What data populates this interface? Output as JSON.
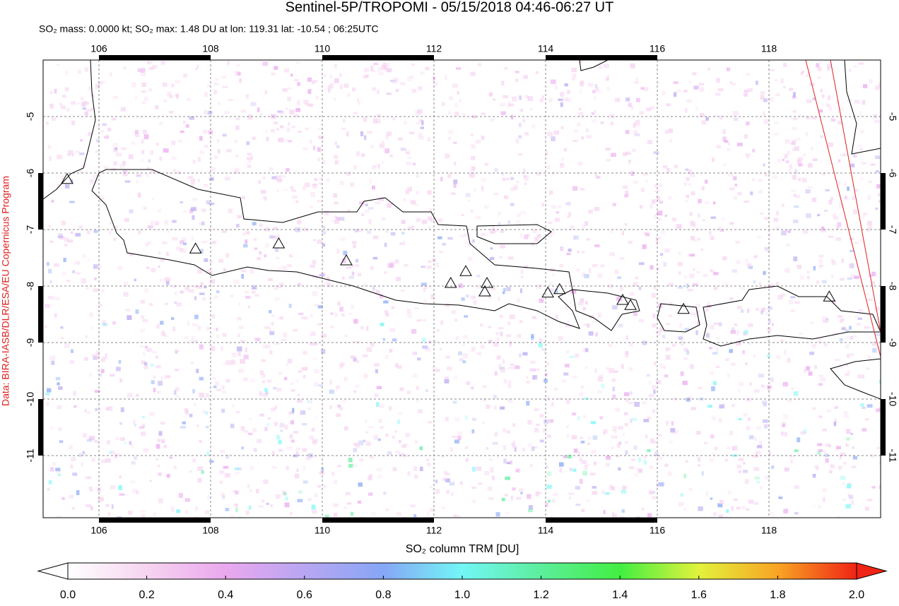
{
  "chart_data": {
    "type": "map",
    "title": "Sentinel-5P/TROPOMI - 05/15/2018 04:46-06:27 UT",
    "subtitle": "SO₂ mass: 0.0000 kt; SO₂ max: 1.48 DU at lon: 119.31 lat: -10.54 ; 06:25UTC",
    "credit": "Data: BIRA-IASB/DLR/ESA/EU Copernicus Program",
    "xlim": [
      105,
      120
    ],
    "ylim": [
      -12.1,
      -4
    ],
    "xticks": [
      106,
      108,
      110,
      112,
      114,
      116,
      118
    ],
    "yticks": [
      -5,
      -6,
      -7,
      -8,
      -9,
      -10,
      -11
    ],
    "grid": true,
    "volcanoes": {
      "lon": [
        105.43,
        107.73,
        109.22,
        110.43,
        112.3,
        112.57,
        112.95,
        112.91,
        114.04,
        114.25,
        115.38,
        115.52,
        116.47,
        119.08
      ],
      "lat": [
        -6.11,
        -7.34,
        -7.25,
        -7.55,
        -7.95,
        -7.74,
        -7.95,
        -8.1,
        -8.12,
        -8.06,
        -8.25,
        -8.34,
        -8.41,
        -8.19
      ]
    },
    "colorbar": {
      "label": "SO₂ column TRM [DU]",
      "lim": [
        0,
        2
      ],
      "ticks": [
        {
          "value": 0,
          "label": "0.0"
        },
        {
          "value": 0.2,
          "label": "0.2"
        },
        {
          "value": 0.4,
          "label": "0.4"
        },
        {
          "value": 0.6,
          "label": "0.6"
        },
        {
          "value": 0.8,
          "label": "0.8"
        },
        {
          "value": 1,
          "label": "1.0"
        },
        {
          "value": 1.2,
          "label": "1.2"
        },
        {
          "value": 1.4,
          "label": "1.4"
        },
        {
          "value": 1.6,
          "label": "1.6"
        },
        {
          "value": 1.8,
          "label": "1.8"
        },
        {
          "value": 2,
          "label": "2.0"
        }
      ],
      "colors": [
        "#ffffff",
        "#f6d4f0",
        "#eaa8ee",
        "#b8a6f2",
        "#86a6f6",
        "#72f6f6",
        "#5cee9c",
        "#42ee42",
        "#e2f23c",
        "#f8a424",
        "#f02414"
      ]
    }
  }
}
